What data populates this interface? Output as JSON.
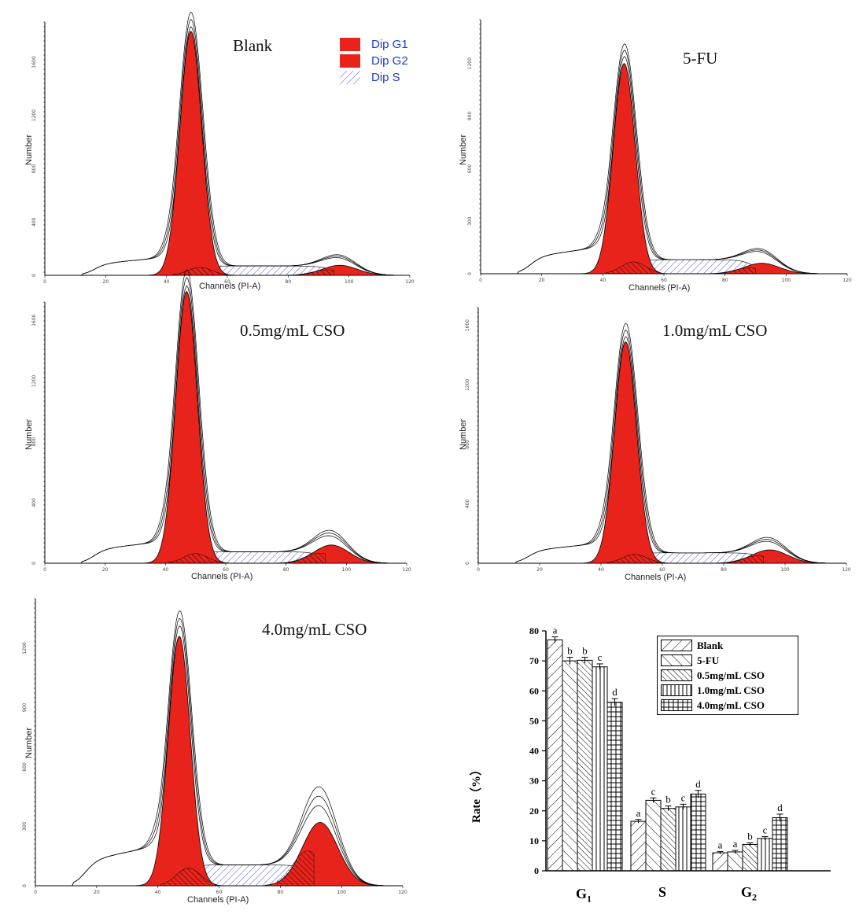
{
  "histograms": [
    {
      "id": "blank",
      "title": "Blank",
      "x_label": "Channels (PI-A)",
      "y_label": "Number",
      "x_ticks": [
        "0",
        "20",
        "40",
        "60",
        "80",
        "100",
        "120"
      ],
      "y_ticks": [
        "0",
        "400",
        "800",
        "1200",
        "1600"
      ],
      "y_max": 1900,
      "g1_peak": {
        "channel": 48,
        "count": 1830
      },
      "g2_peak": {
        "channel": 97,
        "count": 75
      },
      "s_level": 70,
      "show_legend": true
    },
    {
      "id": "five-fu",
      "title": "5-FU",
      "x_label": "Channels (PI-A)",
      "y_label": "Number",
      "x_ticks": [
        "0",
        "20",
        "40",
        "60",
        "80",
        "100",
        "120"
      ],
      "y_ticks": [
        "0",
        "300",
        "600",
        "900",
        "1200"
      ],
      "y_max": 1450,
      "g1_peak": {
        "channel": 47,
        "count": 1200
      },
      "g2_peak": {
        "channel": 92,
        "count": 60
      },
      "s_level": 80,
      "show_legend": false
    },
    {
      "id": "cso-05",
      "title": "0.5mg/mL CSO",
      "x_label": "Channels (PI-A)",
      "y_label": "Number",
      "x_ticks": [
        "0",
        "20",
        "40",
        "60",
        "80",
        "100",
        "120"
      ],
      "y_ticks": [
        "0",
        "400",
        "800",
        "1200",
        "1600"
      ],
      "y_max": 1720,
      "g1_peak": {
        "channel": 47,
        "count": 1790
      },
      "g2_peak": {
        "channel": 95,
        "count": 120
      },
      "s_level": 75,
      "show_legend": false
    },
    {
      "id": "cso-10",
      "title": "1.0mg/mL CSO",
      "x_label": "Channels (PI-A)",
      "y_label": "Number",
      "x_ticks": [
        "0",
        "20",
        "40",
        "60",
        "80",
        "100",
        "120"
      ],
      "y_ticks": [
        "0",
        "400",
        "800",
        "1200",
        "1600"
      ],
      "y_max": 1720,
      "g1_peak": {
        "channel": 48,
        "count": 1490
      },
      "g2_peak": {
        "channel": 95,
        "count": 90
      },
      "s_level": 70,
      "show_legend": false
    },
    {
      "id": "cso-40",
      "title": "4.0mg/mL CSO",
      "x_label": "Channels (PI-A)",
      "y_label": "Number",
      "x_ticks": [
        "0",
        "20",
        "40",
        "60",
        "80",
        "100",
        "120"
      ],
      "y_ticks": [
        "0",
        "300",
        "600",
        "900",
        "1200"
      ],
      "y_max": 1450,
      "g1_peak": {
        "channel": 47,
        "count": 1260
      },
      "g2_peak": {
        "channel": 93,
        "count": 320
      },
      "s_level": 105,
      "show_legend": false
    }
  ],
  "histogram_legend": [
    {
      "label": "Dip G1",
      "pattern": "solid-red"
    },
    {
      "label": "Dip G2",
      "pattern": "solid-red"
    },
    {
      "label": "Dip S",
      "pattern": "blue-hatch"
    }
  ],
  "colors": {
    "phase_fill": "#e8231b",
    "s_hatch": "#3a4fd6",
    "legend_text": "#1a3ccc"
  },
  "chart_data": {
    "type": "bar",
    "categories": [
      "G1",
      "S",
      "G2"
    ],
    "ylabel": "Rate（%）",
    "ylim": [
      0,
      80
    ],
    "y_ticks": [
      "0",
      "10",
      "20",
      "30",
      "40",
      "50",
      "60",
      "70",
      "80"
    ],
    "series": [
      {
        "name": "Blank",
        "pattern": "diag-right",
        "values": [
          77.0,
          16.5,
          6.0
        ],
        "errors": [
          1.0,
          0.6,
          0.4
        ],
        "labels": [
          "a",
          "a",
          "a"
        ]
      },
      {
        "name": "5-FU",
        "pattern": "diag-left",
        "values": [
          70.0,
          23.5,
          6.3
        ],
        "errors": [
          1.2,
          0.8,
          0.5
        ],
        "labels": [
          "b",
          "c",
          "a"
        ]
      },
      {
        "name": "0.5mg/mL CSO",
        "pattern": "diag-dense",
        "values": [
          70.2,
          20.8,
          8.8
        ],
        "errors": [
          1.0,
          0.8,
          0.5
        ],
        "labels": [
          "b",
          "b",
          "b"
        ]
      },
      {
        "name": "1.0mg/mL CSO",
        "pattern": "vertical",
        "values": [
          68.0,
          21.3,
          10.8
        ],
        "errors": [
          1.0,
          0.9,
          0.6
        ],
        "labels": [
          "c",
          "c",
          "c"
        ]
      },
      {
        "name": "4.0mg/mL CSO",
        "pattern": "grid",
        "values": [
          56.2,
          25.6,
          17.7
        ],
        "errors": [
          1.2,
          1.2,
          1.2
        ],
        "labels": [
          "d",
          "d",
          "d"
        ]
      }
    ]
  }
}
